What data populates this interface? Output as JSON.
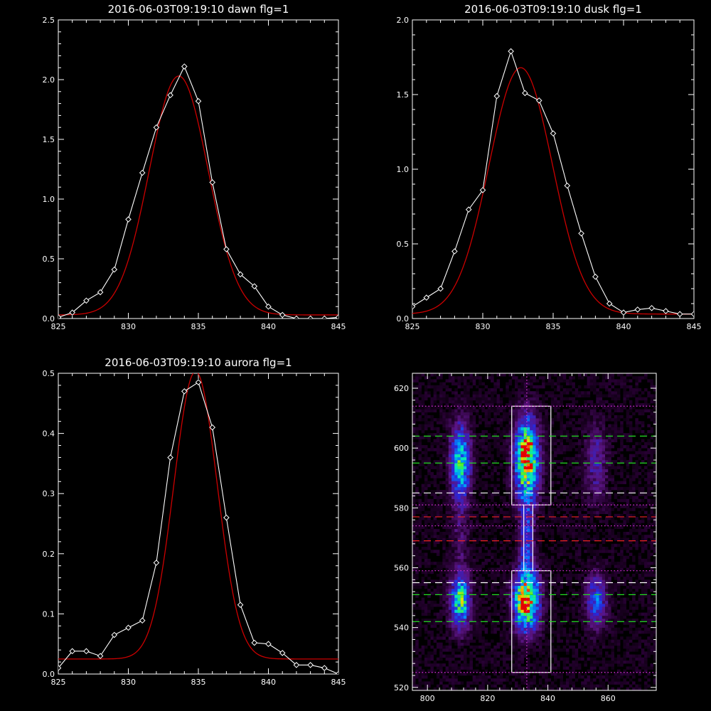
{
  "chart_data": [
    {
      "type": "line",
      "title": "2016-06-03T09:19:10 dawn flg=1",
      "xlim": [
        825,
        845
      ],
      "ylim": [
        0,
        2.5
      ],
      "xticks": [
        825,
        830,
        835,
        840,
        845
      ],
      "yticks": [
        0.0,
        0.5,
        1.0,
        1.5,
        2.0,
        2.5
      ],
      "ytick_labels": [
        "0.0",
        "0.5",
        "1.0",
        "1.5",
        "2.0",
        "2.5"
      ],
      "grid": false,
      "series": [
        {
          "color": "#ffffff",
          "marker": "diamond",
          "x": [
            825,
            826,
            827,
            828,
            829,
            830,
            831,
            832,
            833,
            834,
            835,
            836,
            837,
            838,
            839,
            840,
            841,
            842,
            843,
            844,
            845
          ],
          "y": [
            0.01,
            0.05,
            0.15,
            0.22,
            0.41,
            0.83,
            1.22,
            1.6,
            1.87,
            2.11,
            1.82,
            1.14,
            0.58,
            0.37,
            0.27,
            0.1,
            0.03,
            0.0,
            0.0,
            0.0,
            0.01
          ]
        },
        {
          "color": "#cc0000",
          "marker": "none",
          "fit": "gaussian",
          "amplitude": 2.0,
          "center": 833.6,
          "sigma": 2.1,
          "baseline": 0.03
        }
      ]
    },
    {
      "type": "line",
      "title": "2016-06-03T09:19:10 dusk flg=1",
      "xlim": [
        825,
        845
      ],
      "ylim": [
        0,
        2.0
      ],
      "xticks": [
        825,
        830,
        835,
        840,
        845
      ],
      "yticks": [
        0.0,
        0.5,
        1.0,
        1.5,
        2.0
      ],
      "ytick_labels": [
        "0.0",
        "0.5",
        "1.0",
        "1.5",
        "2.0"
      ],
      "grid": false,
      "series": [
        {
          "color": "#ffffff",
          "marker": "diamond",
          "x": [
            825,
            826,
            827,
            828,
            829,
            830,
            831,
            832,
            833,
            834,
            835,
            836,
            837,
            838,
            839,
            840,
            841,
            842,
            843,
            844,
            845
          ],
          "y": [
            0.08,
            0.14,
            0.2,
            0.45,
            0.73,
            0.86,
            1.49,
            1.79,
            1.51,
            1.46,
            1.24,
            0.89,
            0.57,
            0.28,
            0.1,
            0.04,
            0.06,
            0.07,
            0.05,
            0.03,
            0.03
          ]
        },
        {
          "color": "#cc0000",
          "marker": "none",
          "fit": "gaussian",
          "amplitude": 1.65,
          "center": 832.7,
          "sigma": 2.25,
          "baseline": 0.03
        }
      ]
    },
    {
      "type": "line",
      "title": "2016-06-03T09:19:10 aurora flg=1",
      "xlim": [
        825,
        845
      ],
      "ylim": [
        0,
        0.5
      ],
      "xticks": [
        825,
        830,
        835,
        840,
        845
      ],
      "yticks": [
        0.0,
        0.1,
        0.2,
        0.3,
        0.4,
        0.5
      ],
      "ytick_labels": [
        "0.0",
        "0.1",
        "0.2",
        "0.3",
        "0.4",
        "0.5"
      ],
      "grid": false,
      "series": [
        {
          "color": "#ffffff",
          "marker": "diamond",
          "x": [
            825,
            826,
            827,
            828,
            829,
            830,
            831,
            832,
            833,
            834,
            835,
            836,
            837,
            838,
            839,
            840,
            841,
            842,
            843,
            844,
            845
          ],
          "y": [
            0.01,
            0.038,
            0.038,
            0.03,
            0.065,
            0.077,
            0.089,
            0.185,
            0.36,
            0.47,
            0.485,
            0.41,
            0.26,
            0.115,
            0.052,
            0.05,
            0.035,
            0.015,
            0.015,
            0.01,
            0.0
          ]
        },
        {
          "color": "#cc0000",
          "marker": "none",
          "fit": "gaussian",
          "amplitude": 0.478,
          "center": 834.8,
          "sigma": 1.55,
          "baseline": 0.025
        }
      ]
    },
    {
      "type": "heatmap",
      "xlim": [
        795,
        876
      ],
      "ylim": [
        519,
        625
      ],
      "xticks": [
        800,
        820,
        840,
        860
      ],
      "yticks": [
        520,
        540,
        560,
        580,
        600,
        620
      ],
      "grid": false,
      "colormap": "rainbow-on-black",
      "blobs": [
        {
          "x": 811,
          "y": 595,
          "sx": 2.2,
          "sy": 8.5,
          "amp": 0.6
        },
        {
          "x": 811,
          "y": 549,
          "sx": 2.2,
          "sy": 6,
          "amp": 0.65
        },
        {
          "x": 833,
          "y": 596,
          "sx": 2.6,
          "sy": 9,
          "amp": 0.9
        },
        {
          "x": 833,
          "y": 600,
          "sx": 1.2,
          "sy": 2.5,
          "amp": 0.35
        },
        {
          "x": 833,
          "y": 549,
          "sx": 2.8,
          "sy": 6.5,
          "amp": 0.92
        },
        {
          "x": 832,
          "y": 548,
          "sx": 1.2,
          "sy": 2,
          "amp": 0.3
        },
        {
          "x": 856,
          "y": 595,
          "sx": 2.4,
          "sy": 8.5,
          "amp": 0.22
        },
        {
          "x": 856,
          "y": 549,
          "sx": 2.4,
          "sy": 6,
          "amp": 0.35
        },
        {
          "x": 833,
          "y": 569,
          "sx": 1.6,
          "sy": 9,
          "amp": 0.32
        },
        {
          "x": 811,
          "y": 570,
          "sx": 2,
          "sy": 7,
          "amp": 0.12
        }
      ],
      "overlays": [
        {
          "kind": "rect",
          "color": "#ffffff",
          "x0": 828,
          "x1": 841,
          "y0": 581,
          "y1": 614
        },
        {
          "kind": "rect",
          "color": "#ffffff",
          "x0": 828,
          "x1": 841,
          "y0": 525,
          "y1": 559
        },
        {
          "kind": "rect",
          "color": "#ffffff",
          "x0": 832,
          "x1": 835,
          "y0": 559,
          "y1": 581
        },
        {
          "kind": "hline",
          "color": "#dd33dd",
          "dash": "dot",
          "y": 614
        },
        {
          "kind": "hline",
          "color": "#dd33dd",
          "dash": "dot",
          "y": 581
        },
        {
          "kind": "hline",
          "color": "#dd33dd",
          "dash": "dot",
          "y": 574
        },
        {
          "kind": "hline",
          "color": "#dd33dd",
          "dash": "dot",
          "y": 559
        },
        {
          "kind": "hline",
          "color": "#dd33dd",
          "dash": "dot",
          "y": 525
        },
        {
          "kind": "vline",
          "color": "#dd33dd",
          "dash": "dot",
          "x": 833
        },
        {
          "kind": "hline",
          "color": "#22dd22",
          "dash": "dash",
          "y": 604
        },
        {
          "kind": "hline",
          "color": "#22dd22",
          "dash": "dash",
          "y": 595
        },
        {
          "kind": "hline",
          "color": "#22dd22",
          "dash": "dash",
          "y": 551
        },
        {
          "kind": "hline",
          "color": "#22dd22",
          "dash": "dash",
          "y": 542
        },
        {
          "kind": "hline",
          "color": "#ffffff",
          "dash": "dash",
          "y": 585
        },
        {
          "kind": "hline",
          "color": "#ffffff",
          "dash": "dash",
          "y": 555
        },
        {
          "kind": "hline",
          "color": "#ee2222",
          "dash": "dash",
          "y": 577
        },
        {
          "kind": "hline",
          "color": "#ee2222",
          "dash": "dash",
          "y": 569
        }
      ]
    }
  ]
}
